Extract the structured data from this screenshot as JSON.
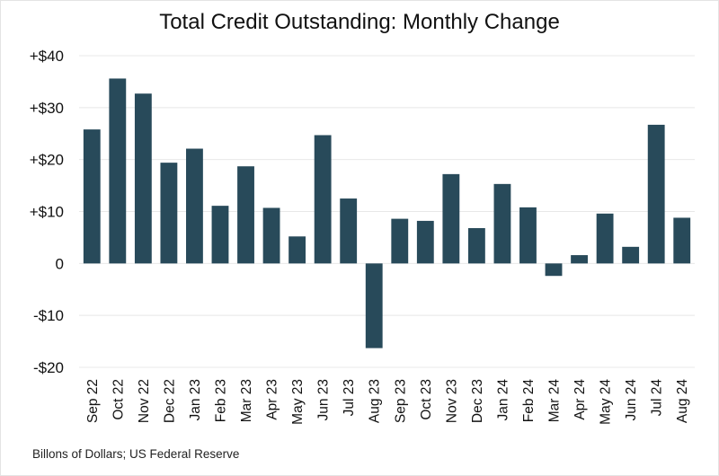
{
  "chart_data": {
    "type": "bar",
    "title": "Total Credit Outstanding: Monthly Change",
    "source": "Billons of Dollars; US Federal Reserve",
    "categories": [
      "Sep 22",
      "Oct 22",
      "Nov 22",
      "Dec 22",
      "Jan 23",
      "Feb 23",
      "Mar 23",
      "Apr 23",
      "May 23",
      "Jun 23",
      "Jul 23",
      "Aug 23",
      "Sep 23",
      "Oct 23",
      "Nov 23",
      "Dec 23",
      "Jan 24",
      "Feb 24",
      "Mar 24",
      "Apr 24",
      "May 24",
      "Jun 24",
      "Jul 24",
      "Aug 24"
    ],
    "values": [
      25.8,
      35.6,
      32.7,
      19.4,
      22.1,
      11.1,
      18.7,
      10.7,
      5.2,
      24.7,
      12.5,
      -16.3,
      8.6,
      8.2,
      17.2,
      6.8,
      15.3,
      10.8,
      -2.4,
      1.6,
      9.6,
      3.2,
      26.7,
      8.8
    ],
    "ylim": [
      -20,
      40
    ],
    "yticks": [
      40,
      30,
      20,
      10,
      0,
      -10,
      -20
    ],
    "ytick_labels": [
      "+$40",
      "+$30",
      "+$20",
      "+$10",
      "0",
      "-$10",
      "-$20"
    ],
    "grid": true,
    "bar_color": "#284a5a",
    "grid_color": "#e8e8e8"
  }
}
